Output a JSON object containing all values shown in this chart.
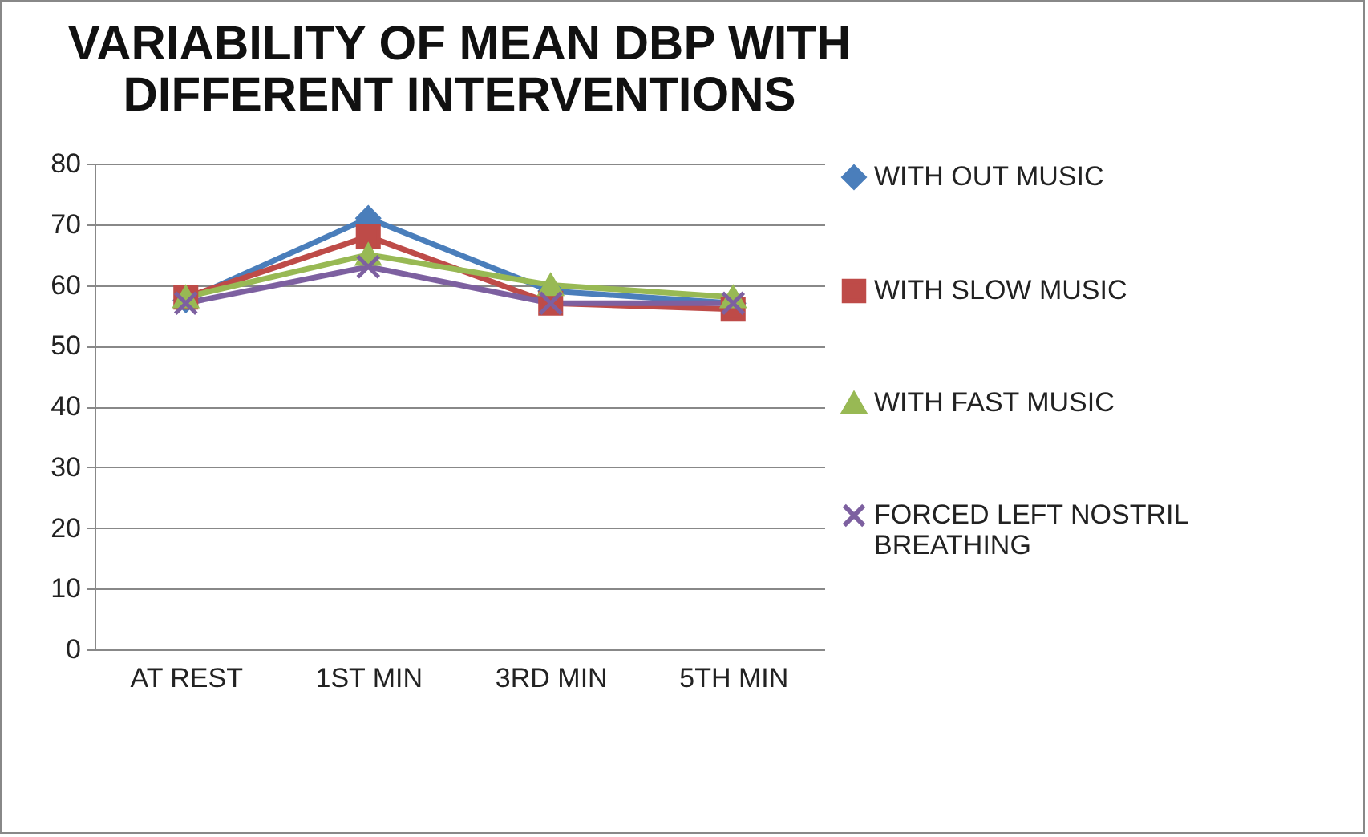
{
  "chart_data": {
    "type": "line",
    "title": "VARIABILITY OF MEAN DBP WITH DIFFERENT INTERVENTIONS",
    "categories": [
      "AT REST",
      "1ST MIN",
      "3RD MIN",
      "5TH MIN"
    ],
    "series": [
      {
        "name": "WITH OUT MUSIC",
        "color": "#4a7ebb",
        "marker": "diamond",
        "values": [
          57.5,
          71,
          59,
          57
        ]
      },
      {
        "name": "WITH SLOW MUSIC",
        "color": "#be4b48",
        "marker": "square",
        "values": [
          58,
          68,
          57,
          56
        ]
      },
      {
        "name": "WITH FAST MUSIC",
        "color": "#98b954",
        "marker": "triangle",
        "values": [
          58,
          65,
          60,
          58
        ]
      },
      {
        "name": "FORCED LEFT NOSTRIL BREATHING",
        "color": "#7d60a0",
        "marker": "cross",
        "values": [
          57,
          63,
          57,
          57
        ]
      }
    ],
    "ylim": [
      0,
      80
    ],
    "yticks": [
      0,
      10,
      20,
      30,
      40,
      50,
      60,
      70,
      80
    ],
    "grid": "y",
    "legend": "right",
    "line_style": "solid"
  }
}
